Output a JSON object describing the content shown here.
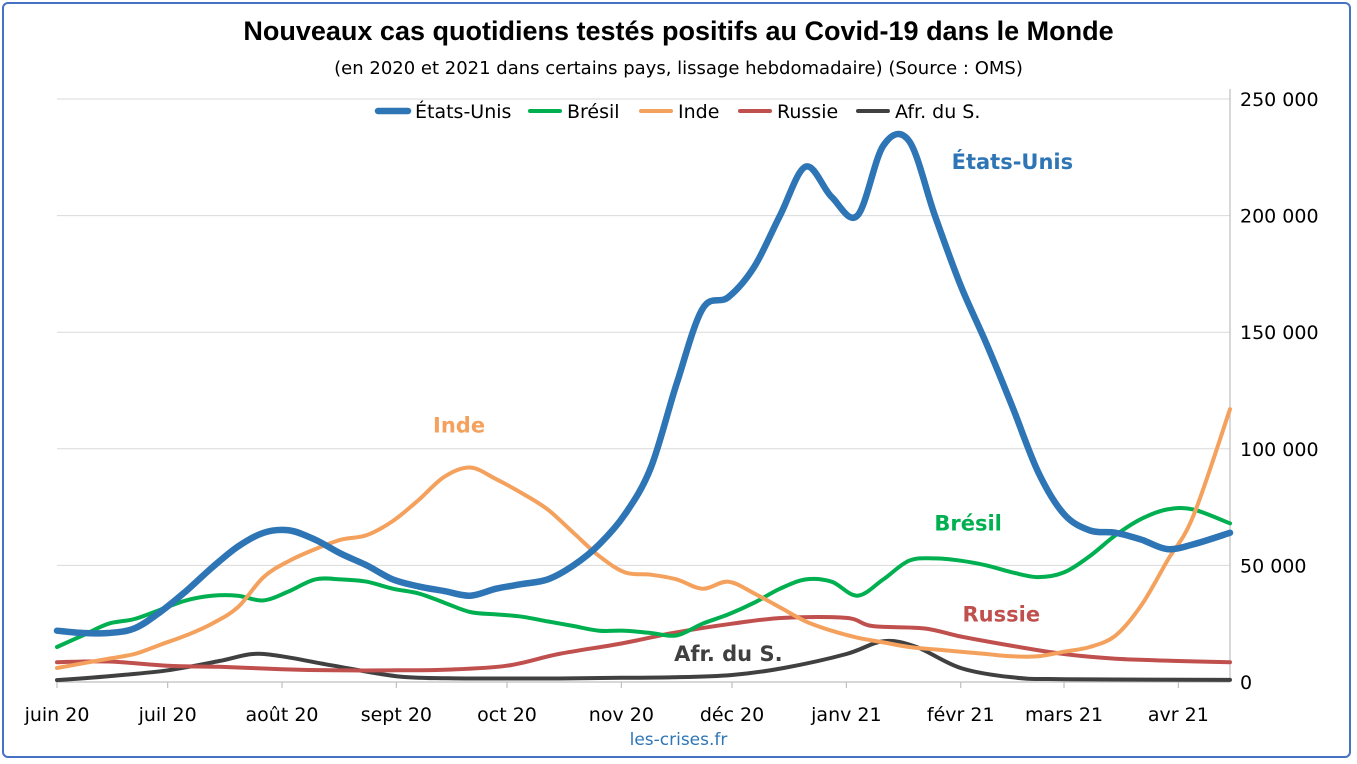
{
  "chart_data": {
    "type": "line",
    "title": "Nouveaux cas quotidiens testés positifs au Covid-19 dans le Monde",
    "subtitle": "(en 2020 et 2021 dans certains pays, lissage hebdomadaire) (Source : OMS)",
    "source": "les-crises.fr",
    "x_start": "2020-06-01",
    "x_end": "2021-04-15",
    "x_tick_labels": [
      {
        "date": "2020-06-01",
        "label": "juin 20"
      },
      {
        "date": "2020-07-01",
        "label": "juil 20"
      },
      {
        "date": "2020-08-01",
        "label": "août 20"
      },
      {
        "date": "2020-09-01",
        "label": "sept 20"
      },
      {
        "date": "2020-10-01",
        "label": "oct 20"
      },
      {
        "date": "2020-11-01",
        "label": "nov 20"
      },
      {
        "date": "2020-12-01",
        "label": "déc 20"
      },
      {
        "date": "2021-01-01",
        "label": "janv 21"
      },
      {
        "date": "2021-02-01",
        "label": "févr 21"
      },
      {
        "date": "2021-03-01",
        "label": "mars 21"
      },
      {
        "date": "2021-04-01",
        "label": "avr 21"
      }
    ],
    "y_axis_side": "right",
    "ylim": [
      0,
      250000
    ],
    "y_ticks": [
      0,
      50000,
      100000,
      150000,
      200000,
      250000
    ],
    "y_tick_labels": [
      "0",
      "50 000",
      "100 000",
      "150 000",
      "200 000",
      "250 000"
    ],
    "grid": true,
    "legend_position": "top-center",
    "series": [
      {
        "name": "États-Unis",
        "color": "#2E75B6",
        "points": [
          [
            "2020-06-01",
            22000
          ],
          [
            "2020-06-08",
            21000
          ],
          [
            "2020-06-15",
            21000
          ],
          [
            "2020-06-22",
            23000
          ],
          [
            "2020-06-29",
            30000
          ],
          [
            "2020-07-06",
            39000
          ],
          [
            "2020-07-13",
            49000
          ],
          [
            "2020-07-20",
            58000
          ],
          [
            "2020-07-27",
            64000
          ],
          [
            "2020-08-03",
            65000
          ],
          [
            "2020-08-10",
            61000
          ],
          [
            "2020-08-17",
            55000
          ],
          [
            "2020-08-24",
            50000
          ],
          [
            "2020-08-31",
            44000
          ],
          [
            "2020-09-07",
            41000
          ],
          [
            "2020-09-14",
            39000
          ],
          [
            "2020-09-21",
            37000
          ],
          [
            "2020-09-28",
            40000
          ],
          [
            "2020-10-05",
            42000
          ],
          [
            "2020-10-12",
            44000
          ],
          [
            "2020-10-19",
            50000
          ],
          [
            "2020-10-26",
            59000
          ],
          [
            "2020-11-02",
            72000
          ],
          [
            "2020-11-09",
            92000
          ],
          [
            "2020-11-16",
            128000
          ],
          [
            "2020-11-23",
            160000
          ],
          [
            "2020-11-30",
            165000
          ],
          [
            "2020-12-07",
            178000
          ],
          [
            "2020-12-14",
            200000
          ],
          [
            "2020-12-21",
            221000
          ],
          [
            "2020-12-28",
            208000
          ],
          [
            "2021-01-04",
            200000
          ],
          [
            "2021-01-11",
            230000
          ],
          [
            "2021-01-18",
            232000
          ],
          [
            "2021-01-25",
            200000
          ],
          [
            "2021-02-01",
            170000
          ],
          [
            "2021-02-08",
            145000
          ],
          [
            "2021-02-15",
            118000
          ],
          [
            "2021-02-22",
            90000
          ],
          [
            "2021-03-01",
            72000
          ],
          [
            "2021-03-08",
            65000
          ],
          [
            "2021-03-15",
            64000
          ],
          [
            "2021-03-22",
            61000
          ],
          [
            "2021-03-29",
            57000
          ],
          [
            "2021-04-05",
            59000
          ],
          [
            "2021-04-15",
            64000
          ]
        ]
      },
      {
        "name": "Brésil",
        "color": "#00B050",
        "points": [
          [
            "2020-06-01",
            15000
          ],
          [
            "2020-06-08",
            20000
          ],
          [
            "2020-06-15",
            25000
          ],
          [
            "2020-06-22",
            27000
          ],
          [
            "2020-06-29",
            31000
          ],
          [
            "2020-07-06",
            35000
          ],
          [
            "2020-07-13",
            37000
          ],
          [
            "2020-07-20",
            37000
          ],
          [
            "2020-07-27",
            35000
          ],
          [
            "2020-08-03",
            39000
          ],
          [
            "2020-08-10",
            44000
          ],
          [
            "2020-08-17",
            44000
          ],
          [
            "2020-08-24",
            43000
          ],
          [
            "2020-08-31",
            40000
          ],
          [
            "2020-09-07",
            38000
          ],
          [
            "2020-09-14",
            34000
          ],
          [
            "2020-09-21",
            30000
          ],
          [
            "2020-09-28",
            29000
          ],
          [
            "2020-10-05",
            28000
          ],
          [
            "2020-10-12",
            26000
          ],
          [
            "2020-10-19",
            24000
          ],
          [
            "2020-10-26",
            22000
          ],
          [
            "2020-11-02",
            22000
          ],
          [
            "2020-11-09",
            21000
          ],
          [
            "2020-11-16",
            20000
          ],
          [
            "2020-11-23",
            25000
          ],
          [
            "2020-11-30",
            29000
          ],
          [
            "2020-12-07",
            34000
          ],
          [
            "2020-12-14",
            40000
          ],
          [
            "2020-12-21",
            44000
          ],
          [
            "2020-12-28",
            43000
          ],
          [
            "2021-01-04",
            37000
          ],
          [
            "2021-01-11",
            44000
          ],
          [
            "2021-01-18",
            52000
          ],
          [
            "2021-01-25",
            53000
          ],
          [
            "2021-02-01",
            52000
          ],
          [
            "2021-02-08",
            50000
          ],
          [
            "2021-02-15",
            47000
          ],
          [
            "2021-02-22",
            45000
          ],
          [
            "2021-03-01",
            47000
          ],
          [
            "2021-03-08",
            54000
          ],
          [
            "2021-03-15",
            63000
          ],
          [
            "2021-03-22",
            70000
          ],
          [
            "2021-03-29",
            74000
          ],
          [
            "2021-04-05",
            74000
          ],
          [
            "2021-04-15",
            68000
          ]
        ]
      },
      {
        "name": "Inde",
        "color": "#F4A15D",
        "points": [
          [
            "2020-06-01",
            6000
          ],
          [
            "2020-06-08",
            8000
          ],
          [
            "2020-06-15",
            10000
          ],
          [
            "2020-06-22",
            12000
          ],
          [
            "2020-06-29",
            16000
          ],
          [
            "2020-07-06",
            20000
          ],
          [
            "2020-07-13",
            25000
          ],
          [
            "2020-07-20",
            32000
          ],
          [
            "2020-07-27",
            45000
          ],
          [
            "2020-08-03",
            52000
          ],
          [
            "2020-08-10",
            57000
          ],
          [
            "2020-08-17",
            61000
          ],
          [
            "2020-08-24",
            63000
          ],
          [
            "2020-08-31",
            69000
          ],
          [
            "2020-09-07",
            78000
          ],
          [
            "2020-09-14",
            88000
          ],
          [
            "2020-09-21",
            92000
          ],
          [
            "2020-09-28",
            87000
          ],
          [
            "2020-10-05",
            81000
          ],
          [
            "2020-10-12",
            74000
          ],
          [
            "2020-10-19",
            64000
          ],
          [
            "2020-10-26",
            54000
          ],
          [
            "2020-11-02",
            47000
          ],
          [
            "2020-11-09",
            46000
          ],
          [
            "2020-11-16",
            44000
          ],
          [
            "2020-11-23",
            40000
          ],
          [
            "2020-11-30",
            43000
          ],
          [
            "2020-12-07",
            38000
          ],
          [
            "2020-12-14",
            32000
          ],
          [
            "2020-12-21",
            26000
          ],
          [
            "2020-12-28",
            22000
          ],
          [
            "2021-01-04",
            19000
          ],
          [
            "2021-01-11",
            17000
          ],
          [
            "2021-01-18",
            15000
          ],
          [
            "2021-01-25",
            14000
          ],
          [
            "2021-02-01",
            13000
          ],
          [
            "2021-02-08",
            12000
          ],
          [
            "2021-02-15",
            11000
          ],
          [
            "2021-02-22",
            11000
          ],
          [
            "2021-03-01",
            13000
          ],
          [
            "2021-03-08",
            15000
          ],
          [
            "2021-03-15",
            20000
          ],
          [
            "2021-03-22",
            33000
          ],
          [
            "2021-03-29",
            52000
          ],
          [
            "2021-04-05",
            71000
          ],
          [
            "2021-04-15",
            117000
          ]
        ]
      },
      {
        "name": "Russie",
        "color": "#C0504D",
        "points": [
          [
            "2020-06-01",
            8500
          ],
          [
            "2020-06-15",
            8800
          ],
          [
            "2020-07-01",
            7000
          ],
          [
            "2020-07-15",
            6500
          ],
          [
            "2020-08-01",
            5500
          ],
          [
            "2020-08-15",
            5000
          ],
          [
            "2020-09-01",
            5000
          ],
          [
            "2020-09-15",
            5300
          ],
          [
            "2020-10-01",
            7000
          ],
          [
            "2020-10-15",
            12000
          ],
          [
            "2020-11-01",
            16500
          ],
          [
            "2020-11-15",
            21000
          ],
          [
            "2020-12-01",
            25000
          ],
          [
            "2020-12-15",
            27500
          ],
          [
            "2021-01-01",
            27500
          ],
          [
            "2021-01-08",
            24000
          ],
          [
            "2021-01-22",
            23000
          ],
          [
            "2021-02-01",
            19500
          ],
          [
            "2021-02-15",
            15500
          ],
          [
            "2021-03-01",
            12000
          ],
          [
            "2021-03-15",
            10000
          ],
          [
            "2021-04-01",
            9000
          ],
          [
            "2021-04-15",
            8500
          ]
        ]
      },
      {
        "name": "Afr. du S.",
        "color": "#404040",
        "points": [
          [
            "2020-06-01",
            800
          ],
          [
            "2020-06-15",
            2500
          ],
          [
            "2020-07-01",
            5000
          ],
          [
            "2020-07-15",
            9000
          ],
          [
            "2020-07-24",
            12000
          ],
          [
            "2020-08-01",
            11000
          ],
          [
            "2020-08-15",
            7000
          ],
          [
            "2020-09-01",
            2500
          ],
          [
            "2020-09-15",
            1600
          ],
          [
            "2020-10-01",
            1500
          ],
          [
            "2020-10-15",
            1500
          ],
          [
            "2020-11-01",
            1800
          ],
          [
            "2020-11-15",
            2000
          ],
          [
            "2020-12-01",
            3000
          ],
          [
            "2020-12-15",
            6000
          ],
          [
            "2021-01-01",
            12000
          ],
          [
            "2021-01-11",
            17500
          ],
          [
            "2021-01-20",
            15000
          ],
          [
            "2021-02-01",
            6000
          ],
          [
            "2021-02-15",
            2000
          ],
          [
            "2021-03-01",
            1200
          ],
          [
            "2021-04-15",
            900
          ]
        ]
      }
    ],
    "annotations": [
      {
        "text": "États-Unis",
        "color": "#2E75B6",
        "date": "2021-02-15",
        "value": 220000
      },
      {
        "text": "Inde",
        "color": "#F4A15D",
        "date": "2020-09-18",
        "value": 107000
      },
      {
        "text": "Brésil",
        "color": "#00B050",
        "date": "2021-02-03",
        "value": 65000
      },
      {
        "text": "Russie",
        "color": "#C0504D",
        "date": "2021-02-12",
        "value": 26000
      },
      {
        "text": "Afr. du S.",
        "color": "#404040",
        "date": "2020-11-30",
        "value": 9000
      }
    ]
  }
}
